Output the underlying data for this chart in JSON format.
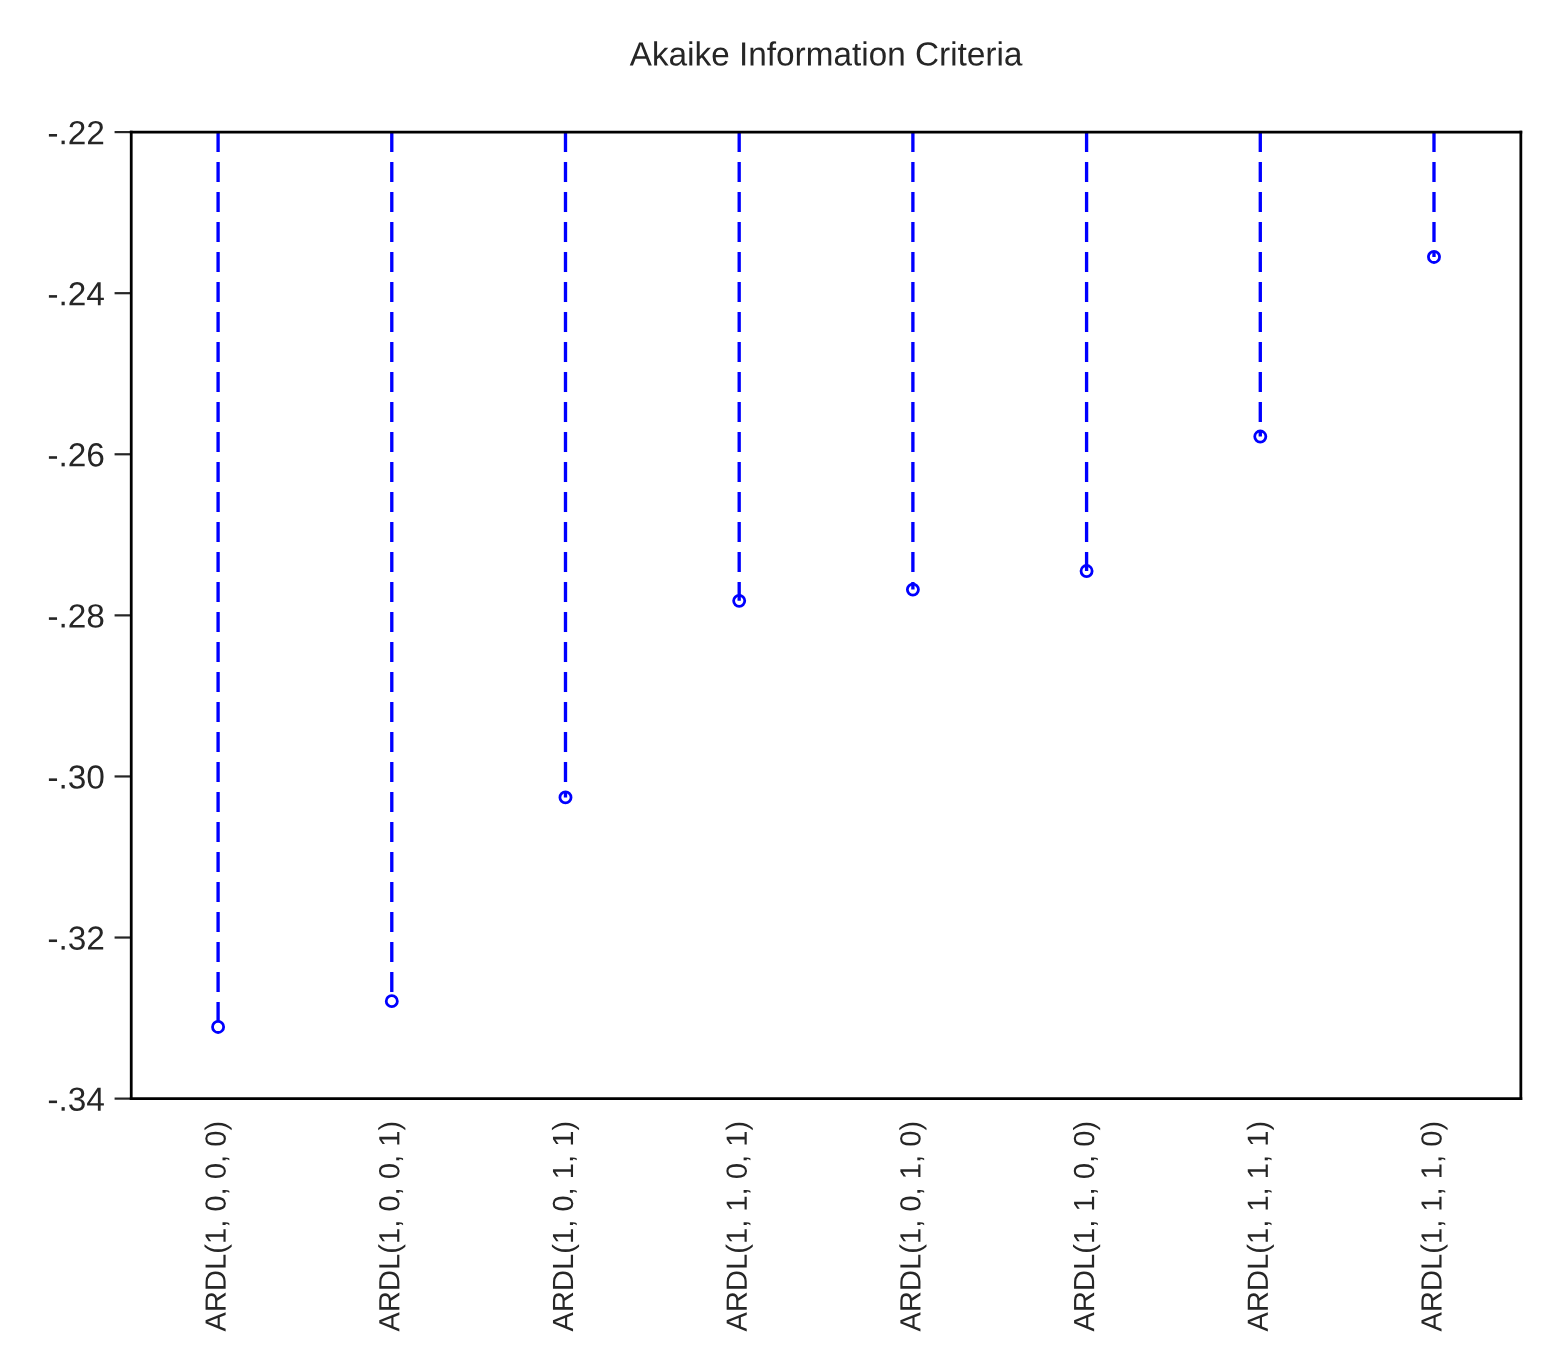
{
  "chart_data": {
    "type": "lollipop",
    "title": "Akaike Information Criteria",
    "categories": [
      "ARDL(1, 0, 0, 0)",
      "ARDL(1, 0, 0, 1)",
      "ARDL(1, 0, 1, 1)",
      "ARDL(1, 1, 0, 1)",
      "ARDL(1, 0, 1, 0)",
      "ARDL(1, 1, 0, 0)",
      "ARDL(1, 1, 1, 1)",
      "ARDL(1, 1, 1, 0)"
    ],
    "series": [
      {
        "color": "#0000ff",
        "values": [
          -0.3311,
          -0.3279,
          -0.3026,
          -0.2782,
          -0.2768,
          -0.2745,
          -0.2578,
          -0.2355
        ]
      }
    ],
    "ylim": [
      -0.34,
      -0.22
    ],
    "yticks": [
      {
        "value": -0.34,
        "label": "-.34"
      },
      {
        "value": -0.32,
        "label": "-.32"
      },
      {
        "value": -0.3,
        "label": "-.30"
      },
      {
        "value": -0.28,
        "label": "-.28"
      },
      {
        "value": -0.26,
        "label": "-.26"
      },
      {
        "value": -0.24,
        "label": "-.24"
      },
      {
        "value": -0.22,
        "label": "-.22"
      }
    ],
    "marker": "circle",
    "line_style": "dashed"
  }
}
